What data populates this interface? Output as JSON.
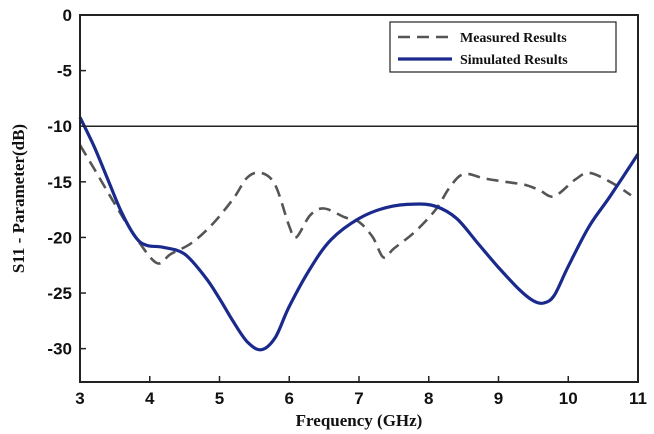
{
  "chart_data": {
    "type": "line",
    "xlabel": "Frequency (GHz)",
    "ylabel": "S11 - Parameter(dB)",
    "xlim": [
      3,
      11
    ],
    "ylim": [
      -33,
      0
    ],
    "x_ticks": [
      "3",
      "4",
      "5",
      "6",
      "7",
      "8",
      "9",
      "10",
      "11"
    ],
    "y_ticks": [
      "0",
      "-5",
      "-10",
      "-15",
      "-20",
      "-25",
      "-30"
    ],
    "reference_line_y": -10,
    "legend_position": "top-right",
    "grid": false,
    "series": [
      {
        "name": "Measured Results",
        "style": "dashed",
        "color": "#555555",
        "x": [
          3.0,
          3.2,
          3.5,
          3.8,
          4.1,
          4.3,
          4.6,
          4.9,
          5.2,
          5.4,
          5.6,
          5.8,
          6.0,
          6.1,
          6.3,
          6.5,
          6.8,
          7.0,
          7.2,
          7.35,
          7.5,
          7.8,
          8.1,
          8.3,
          8.5,
          8.8,
          9.1,
          9.4,
          9.6,
          9.8,
          10.1,
          10.3,
          10.6,
          10.9
        ],
        "y": [
          -11.7,
          -13.8,
          -17.0,
          -20.0,
          -22.3,
          -21.5,
          -20.5,
          -18.8,
          -16.5,
          -14.6,
          -14.2,
          -15.3,
          -19.0,
          -20.0,
          -18.0,
          -17.4,
          -18.2,
          -18.6,
          -20.0,
          -21.8,
          -21.0,
          -19.5,
          -17.5,
          -15.5,
          -14.3,
          -14.7,
          -15.0,
          -15.3,
          -15.8,
          -16.3,
          -14.8,
          -14.2,
          -15.0,
          -16.2
        ]
      },
      {
        "name": "Simulated Results",
        "style": "solid",
        "color": "#1a2a8c",
        "x": [
          3.0,
          3.2,
          3.4,
          3.6,
          3.8,
          3.95,
          4.2,
          4.5,
          4.8,
          5.0,
          5.2,
          5.4,
          5.6,
          5.8,
          6.0,
          6.3,
          6.6,
          7.0,
          7.4,
          7.8,
          8.1,
          8.4,
          8.7,
          9.0,
          9.3,
          9.5,
          9.65,
          9.8,
          10.0,
          10.3,
          10.6,
          11.0
        ],
        "y": [
          -9.2,
          -11.8,
          -14.8,
          -17.8,
          -20.0,
          -20.7,
          -20.9,
          -21.5,
          -23.6,
          -25.5,
          -27.6,
          -29.4,
          -30.1,
          -29.0,
          -26.2,
          -22.8,
          -20.2,
          -18.3,
          -17.3,
          -17.0,
          -17.2,
          -18.3,
          -20.5,
          -22.7,
          -24.7,
          -25.7,
          -25.9,
          -25.2,
          -22.6,
          -19.0,
          -16.3,
          -12.5
        ]
      }
    ]
  },
  "colors": {
    "reference_line": "#222222",
    "axes": "#222222"
  }
}
